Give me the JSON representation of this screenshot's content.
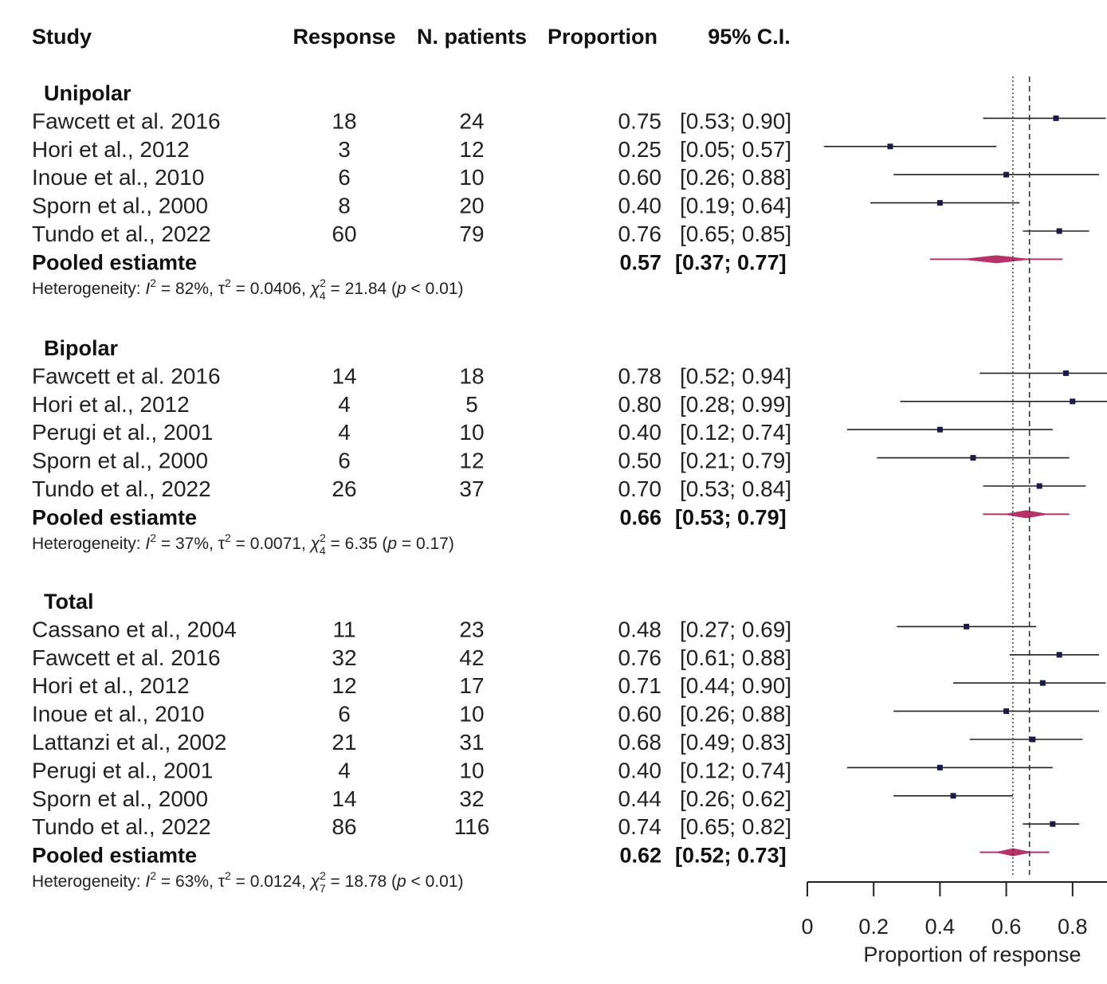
{
  "chart_data": {
    "type": "forest",
    "xlabel": "Proportion of response",
    "x_ticks": [
      "0",
      "0.2",
      "0.4",
      "0.6",
      "0.8"
    ],
    "xlim": [
      0,
      0.9
    ],
    "reference_lines": {
      "random_effects_overall": 0.62,
      "common_effect_overall": 0.67
    },
    "colors": {
      "study_marker": "#1b1b4a",
      "pooled_diamond": "#b8326a",
      "ci_line": "#222222"
    },
    "columns": [
      "Study",
      "Response",
      "N. patients",
      "Proportion",
      "95% C.I."
    ],
    "groups": [
      {
        "name": "Unipolar",
        "studies": [
          {
            "study": "Fawcett et al. 2016",
            "response": "18",
            "n": "24",
            "prop": "0.75",
            "ci": "[0.53; 0.90]",
            "est": 0.75,
            "lo": 0.53,
            "hi": 0.9
          },
          {
            "study": "Hori et al., 2012",
            "response": "3",
            "n": "12",
            "prop": "0.25",
            "ci": "[0.05; 0.57]",
            "est": 0.25,
            "lo": 0.05,
            "hi": 0.57
          },
          {
            "study": "Inoue et al., 2010",
            "response": "6",
            "n": "10",
            "prop": "0.60",
            "ci": "[0.26; 0.88]",
            "est": 0.6,
            "lo": 0.26,
            "hi": 0.88
          },
          {
            "study": "Sporn et al., 2000",
            "response": "8",
            "n": "20",
            "prop": "0.40",
            "ci": "[0.19; 0.64]",
            "est": 0.4,
            "lo": 0.19,
            "hi": 0.64
          },
          {
            "study": "Tundo et al., 2022",
            "response": "60",
            "n": "79",
            "prop": "0.76",
            "ci": "[0.65; 0.85]",
            "est": 0.76,
            "lo": 0.65,
            "hi": 0.85
          }
        ],
        "pooled": {
          "label": "Pooled estiamte",
          "prop": "0.57",
          "ci": "[0.37; 0.77]",
          "est": 0.57,
          "lo": 0.37,
          "hi": 0.77,
          "pi_lo": 0.37,
          "pi_hi": 0.77
        },
        "heterogeneity": {
          "i2": "82%",
          "tau2": "0.0406",
          "df": "4",
          "chi2": "21.84",
          "p": "< 0.01"
        }
      },
      {
        "name": "Bipolar",
        "studies": [
          {
            "study": "Fawcett et al. 2016",
            "response": "14",
            "n": "18",
            "prop": "0.78",
            "ci": "[0.52; 0.94]",
            "est": 0.78,
            "lo": 0.52,
            "hi": 0.94
          },
          {
            "study": "Hori et al., 2012",
            "response": "4",
            "n": "5",
            "prop": "0.80",
            "ci": "[0.28; 0.99]",
            "est": 0.8,
            "lo": 0.28,
            "hi": 0.99
          },
          {
            "study": "Perugi et al., 2001",
            "response": "4",
            "n": "10",
            "prop": "0.40",
            "ci": "[0.12; 0.74]",
            "est": 0.4,
            "lo": 0.12,
            "hi": 0.74
          },
          {
            "study": "Sporn et al., 2000",
            "response": "6",
            "n": "12",
            "prop": "0.50",
            "ci": "[0.21; 0.79]",
            "est": 0.5,
            "lo": 0.21,
            "hi": 0.79
          },
          {
            "study": "Tundo et al., 2022",
            "response": "26",
            "n": "37",
            "prop": "0.70",
            "ci": "[0.53; 0.84]",
            "est": 0.7,
            "lo": 0.53,
            "hi": 0.84
          }
        ],
        "pooled": {
          "label": "Pooled estiamte",
          "prop": "0.66",
          "ci": "[0.53; 0.79]",
          "est": 0.66,
          "lo": 0.53,
          "hi": 0.79,
          "pi_lo": 0.53,
          "pi_hi": 0.79
        },
        "heterogeneity": {
          "i2": "37%",
          "tau2": "0.0071",
          "df": "4",
          "chi2": "6.35",
          "p": "= 0.17"
        }
      },
      {
        "name": "Total",
        "studies": [
          {
            "study": "Cassano et al., 2004",
            "response": "11",
            "n": "23",
            "prop": "0.48",
            "ci": "[0.27; 0.69]",
            "est": 0.48,
            "lo": 0.27,
            "hi": 0.69
          },
          {
            "study": "Fawcett et al. 2016",
            "response": "32",
            "n": "42",
            "prop": "0.76",
            "ci": "[0.61; 0.88]",
            "est": 0.76,
            "lo": 0.61,
            "hi": 0.88
          },
          {
            "study": "Hori et al., 2012",
            "response": "12",
            "n": "17",
            "prop": "0.71",
            "ci": "[0.44; 0.90]",
            "est": 0.71,
            "lo": 0.44,
            "hi": 0.9
          },
          {
            "study": "Inoue et al., 2010",
            "response": "6",
            "n": "10",
            "prop": "0.60",
            "ci": "[0.26; 0.88]",
            "est": 0.6,
            "lo": 0.26,
            "hi": 0.88
          },
          {
            "study": "Lattanzi et al., 2002",
            "response": "21",
            "n": "31",
            "prop": "0.68",
            "ci": "[0.49; 0.83]",
            "est": 0.68,
            "lo": 0.49,
            "hi": 0.83
          },
          {
            "study": "Perugi et al., 2001",
            "response": "4",
            "n": "10",
            "prop": "0.40",
            "ci": "[0.12; 0.74]",
            "est": 0.4,
            "lo": 0.12,
            "hi": 0.74
          },
          {
            "study": "Sporn et al., 2000",
            "response": "14",
            "n": "32",
            "prop": "0.44",
            "ci": "[0.26; 0.62]",
            "est": 0.44,
            "lo": 0.26,
            "hi": 0.62
          },
          {
            "study": "Tundo et al., 2022",
            "response": "86",
            "n": "116",
            "prop": "0.74",
            "ci": "[0.65; 0.82]",
            "est": 0.74,
            "lo": 0.65,
            "hi": 0.82
          }
        ],
        "pooled": {
          "label": "Pooled estiamte",
          "prop": "0.62",
          "ci": "[0.52; 0.73]",
          "est": 0.62,
          "lo": 0.52,
          "hi": 0.73,
          "pi_lo": 0.52,
          "pi_hi": 0.73
        },
        "heterogeneity": {
          "i2": "63%",
          "tau2": "0.0124",
          "df": "7",
          "chi2": "18.78",
          "p": "< 0.01"
        }
      }
    ]
  }
}
